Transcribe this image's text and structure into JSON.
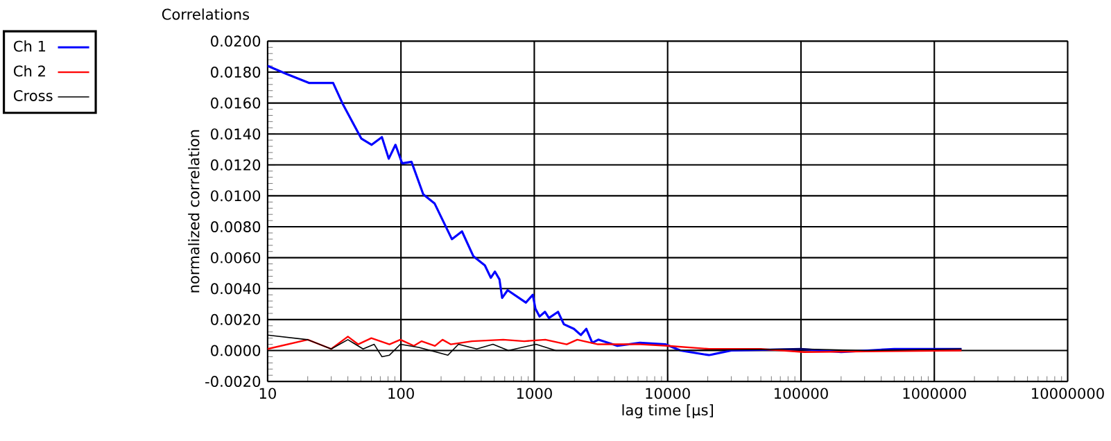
{
  "chart_data": {
    "type": "line",
    "title": "Correlations",
    "xlabel": "lag time [µs]",
    "ylabel": "normalized correlation",
    "log": "x",
    "grid": true,
    "legend": "top left",
    "marker": "none",
    "line_style": "solid",
    "xlim": [
      10,
      10000000
    ],
    "xticks": [
      10,
      100,
      1000,
      10000,
      100000,
      1000000,
      10000000
    ],
    "ylim": [
      -0.002,
      0.02
    ],
    "yticks": [
      {
        "value": -0.002,
        "label": "-0.0020"
      },
      {
        "value": 0,
        "label": "0.0000"
      },
      {
        "value": 0.002,
        "label": "0.0020"
      },
      {
        "value": 0.004,
        "label": "0.0040"
      },
      {
        "value": 0.006,
        "label": "0.0060"
      },
      {
        "value": 0.008,
        "label": "0.0080"
      },
      {
        "value": 0.01,
        "label": "0.0100"
      },
      {
        "value": 0.012,
        "label": "0.0120"
      },
      {
        "value": 0.014,
        "label": "0.0140"
      },
      {
        "value": 0.016,
        "label": "0.0160"
      },
      {
        "value": 0.018,
        "label": "0.0180"
      },
      {
        "value": 0.02,
        "label": "0.0200"
      }
    ],
    "series": [
      {
        "name": "Ch 1",
        "color": "#0000ff",
        "x": [
          10,
          13.7,
          20.4,
          31,
          36.8,
          50.5,
          60.3,
          72,
          81,
          91,
          102,
          120,
          147,
          179,
          241,
          287,
          349,
          426,
          472,
          507,
          548,
          574,
          631,
          865,
          975,
          1020,
          1096,
          1202,
          1288,
          1507,
          1667,
          1982,
          2234,
          2456,
          2723,
          3020,
          4200,
          6200,
          9600,
          12500,
          20400,
          30000,
          100000,
          200000,
          500000,
          1600000
        ],
        "values": [
          0.0184,
          0.0179,
          0.0173,
          0.0173,
          0.0159,
          0.0137,
          0.0133,
          0.0138,
          0.0124,
          0.0133,
          0.0121,
          0.0122,
          0.0101,
          0.0095,
          0.0072,
          0.0077,
          0.0061,
          0.0055,
          0.0047,
          0.0051,
          0.0046,
          0.0034,
          0.0039,
          0.0031,
          0.0036,
          0.0027,
          0.0022,
          0.0025,
          0.0021,
          0.0025,
          0.0017,
          0.0014,
          0.001,
          0.0014,
          0.0005,
          0.0007,
          0.0003,
          0.0005,
          0.0004,
          0.0,
          -0.0003,
          0.0,
          0.0001,
          -0.0001,
          0.0001,
          0.0001
        ]
      },
      {
        "name": "Ch 2",
        "color": "#ff0000",
        "x": [
          10,
          20,
          30,
          40,
          47.7,
          60,
          82,
          99,
          125,
          143,
          180,
          205,
          236,
          340,
          585,
          840,
          1210,
          1750,
          2100,
          3000,
          6250,
          10000,
          20500,
          50000,
          105000,
          1600000
        ],
        "values": [
          0.0001,
          0.0007,
          0.0001,
          0.0009,
          0.0004,
          0.0008,
          0.0004,
          0.0007,
          0.0003,
          0.0006,
          0.0003,
          0.0007,
          0.0004,
          0.0006,
          0.0007,
          0.0006,
          0.0007,
          0.0004,
          0.0007,
          0.0004,
          0.0004,
          0.0003,
          0.0001,
          0.0001,
          -0.0001,
          0.0
        ]
      },
      {
        "name": "Cross",
        "color": "#000000",
        "x": [
          10,
          20,
          30,
          40,
          52,
          63,
          72,
          82,
          99,
          136,
          225,
          270,
          370,
          490,
          640,
          1030,
          1450,
          2500,
          10000,
          100000,
          300000,
          1600000
        ],
        "values": [
          0.001,
          0.0007,
          0.0001,
          0.0007,
          0.0001,
          0.0004,
          -0.0004,
          -0.0003,
          0.0004,
          0.0002,
          -0.0003,
          0.0004,
          0.0001,
          0.0004,
          0.0,
          0.0004,
          0.0,
          0.0,
          0.0,
          0.0001,
          0.0,
          0.0001
        ]
      }
    ]
  }
}
